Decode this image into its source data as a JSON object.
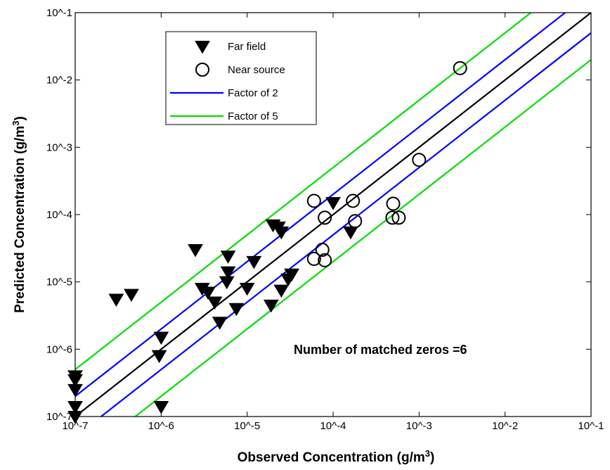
{
  "chart_data": {
    "type": "scatter",
    "x_scale": "log",
    "y_scale": "log",
    "xlim": [
      1e-07,
      0.1
    ],
    "ylim": [
      1e-07,
      0.1
    ],
    "grid": false,
    "legend_position": "top-left",
    "x_ticks": [
      {
        "value": 1e-07,
        "label": "10^-7"
      },
      {
        "value": 1e-06,
        "label": "10^-6"
      },
      {
        "value": 1e-05,
        "label": "10^-5"
      },
      {
        "value": 0.0001,
        "label": "10^-4"
      },
      {
        "value": 0.001,
        "label": "10^-3"
      },
      {
        "value": 0.01,
        "label": "10^-2"
      },
      {
        "value": 0.1,
        "label": "10^-1"
      }
    ],
    "y_ticks": [
      {
        "value": 1e-07,
        "label": "10^-7"
      },
      {
        "value": 1e-06,
        "label": "10^-6"
      },
      {
        "value": 1e-05,
        "label": "10^-5"
      },
      {
        "value": 0.0001,
        "label": "10^-4"
      },
      {
        "value": 0.001,
        "label": "10^-3"
      },
      {
        "value": 0.01,
        "label": "10^-2"
      },
      {
        "value": 0.1,
        "label": "10^-1"
      }
    ],
    "xlabel": {
      "text": "Observed Concentration (g/m",
      "sup": "3",
      "close": ")"
    },
    "ylabel": {
      "text": "Predicted Concentration (g/m",
      "sup": "3",
      "close": ")"
    },
    "annotation": "Number of matched zeros =6",
    "series": [
      {
        "name": "Far field",
        "marker": "filled-down-triangle",
        "color": "#000000",
        "points": [
          [
            1e-07,
            1e-07
          ],
          [
            1e-07,
            1.4e-07
          ],
          [
            1e-07,
            2.5e-07
          ],
          [
            1e-07,
            3.5e-07
          ],
          [
            1e-07,
            4e-07
          ],
          [
            1e-06,
            1.4e-07
          ],
          [
            9.5e-07,
            8e-07
          ],
          [
            1e-06,
            1.5e-06
          ],
          [
            3e-07,
            5.5e-06
          ],
          [
            4.5e-07,
            6.5e-06
          ],
          [
            2.5e-06,
            3e-05
          ],
          [
            3e-06,
            8e-06
          ],
          [
            3.5e-06,
            7e-06
          ],
          [
            4.2e-06,
            5e-06
          ],
          [
            4.8e-06,
            2.5e-06
          ],
          [
            6e-06,
            2.4e-05
          ],
          [
            6e-06,
            1.4e-05
          ],
          [
            5.8e-06,
            1e-05
          ],
          [
            7.5e-06,
            4e-06
          ],
          [
            1e-05,
            8e-06
          ],
          [
            1.2e-05,
            2e-05
          ],
          [
            1.9e-05,
            4.5e-06
          ],
          [
            2e-05,
            7e-05
          ],
          [
            2.3e-05,
            6.5e-05
          ],
          [
            2.5e-05,
            5.5e-05
          ],
          [
            2.5e-05,
            7.5e-06
          ],
          [
            3e-05,
            1.1e-05
          ],
          [
            3.3e-05,
            1.3e-05
          ],
          [
            0.0001,
            0.00015
          ],
          [
            0.00016,
            5.5e-05
          ]
        ]
      },
      {
        "name": "Near source",
        "marker": "open-circle",
        "color": "#000000",
        "points": [
          [
            0.003,
            0.015
          ],
          [
            0.001,
            0.00065
          ],
          [
            6e-05,
            0.00016
          ],
          [
            0.00017,
            0.00016
          ],
          [
            8e-05,
            9e-05
          ],
          [
            0.00018,
            8e-05
          ],
          [
            0.0005,
            0.000145
          ],
          [
            0.00049,
            9e-05
          ],
          [
            0.00058,
            9e-05
          ],
          [
            7.5e-05,
            3e-05
          ],
          [
            6e-05,
            2.2e-05
          ],
          [
            8e-05,
            2.1e-05
          ]
        ]
      }
    ],
    "reference_lines": [
      {
        "name": "Factor of 2",
        "color": "#0000ff",
        "show_in_legend": true,
        "factors": [
          2,
          0.5
        ]
      },
      {
        "name": "Factor of 5",
        "color": "#00dd00",
        "show_in_legend": true,
        "factors": [
          5,
          0.2
        ]
      },
      {
        "name": "",
        "color": "#000000",
        "show_in_legend": false,
        "factors": [
          1
        ]
      }
    ]
  }
}
